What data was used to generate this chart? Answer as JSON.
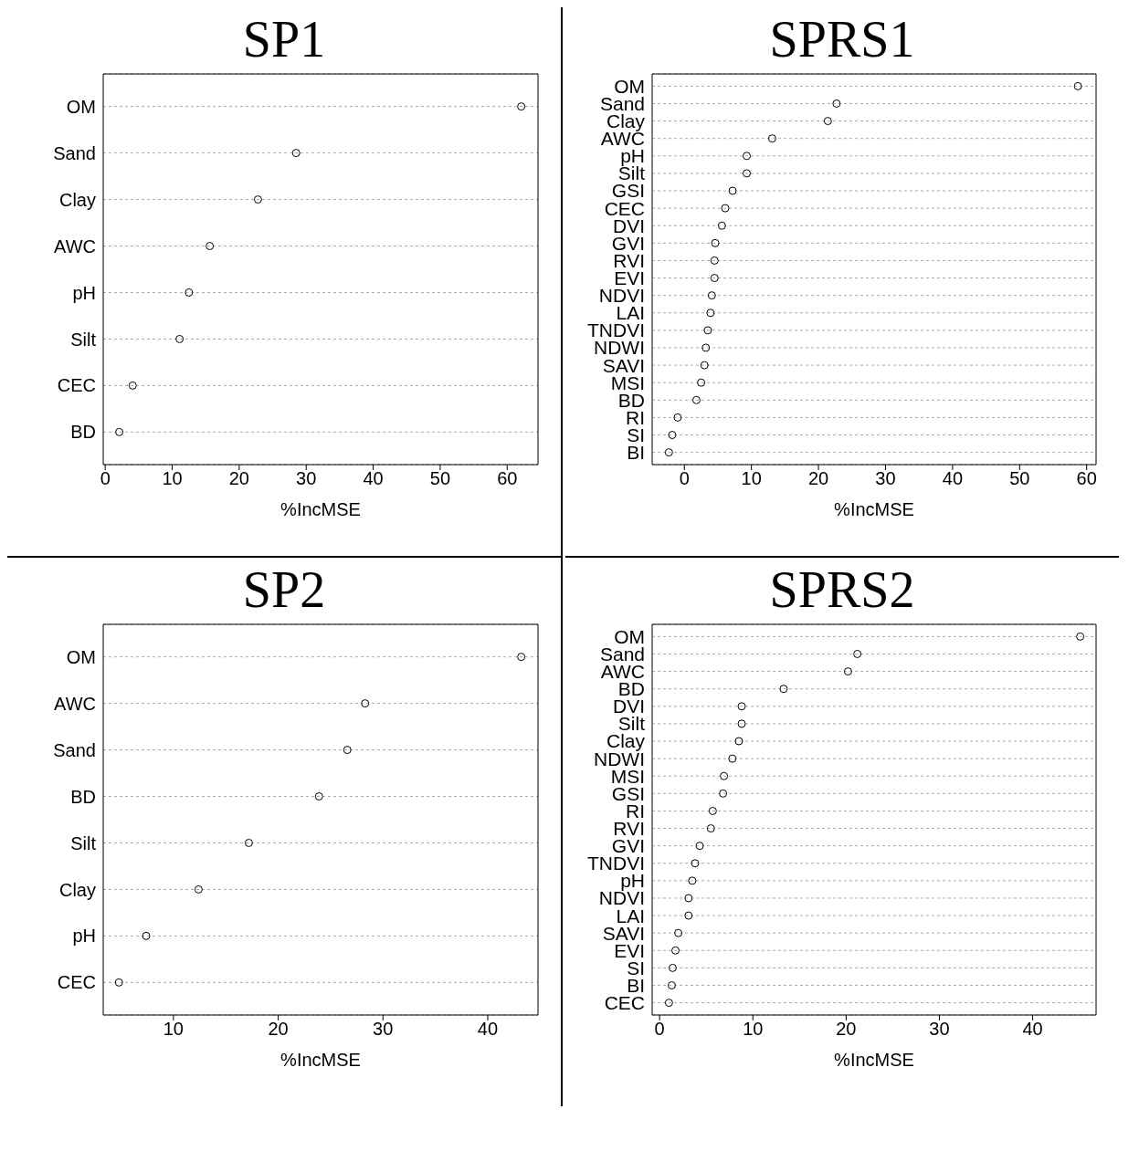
{
  "chart_data": [
    {
      "type": "scatter",
      "orientation": "horizontal",
      "title": "SP1",
      "xlabel": "%IncMSE",
      "categories": [
        "OM",
        "Sand",
        "Clay",
        "AWC",
        "pH",
        "Silt",
        "CEC",
        "BD"
      ],
      "values": [
        62.1,
        28.5,
        22.8,
        15.6,
        12.5,
        11.1,
        4.1,
        2.1
      ],
      "color": "#000000",
      "marker": "circle",
      "xlim": [
        -0.3,
        64.6
      ],
      "xticks": [
        0,
        10,
        20,
        30,
        40,
        50,
        60
      ],
      "grid": "y",
      "legend": false
    },
    {
      "type": "scatter",
      "orientation": "horizontal",
      "title": "SPRS1",
      "xlabel": "%IncMSE",
      "categories": [
        "OM",
        "Sand",
        "Clay",
        "AWC",
        "pH",
        "Silt",
        "GSI",
        "CEC",
        "DVI",
        "GVI",
        "RVI",
        "EVI",
        "NDVI",
        "LAI",
        "TNDVI",
        "NDWI",
        "SAVI",
        "MSI",
        "BD",
        "RI",
        "SI",
        "BI"
      ],
      "values": [
        58.7,
        22.7,
        21.4,
        13.1,
        9.3,
        9.3,
        7.2,
        6.1,
        5.6,
        4.6,
        4.5,
        4.5,
        4.1,
        3.9,
        3.5,
        3.2,
        3.0,
        2.5,
        1.8,
        -1.0,
        -1.8,
        -2.3
      ],
      "color": "#000000",
      "marker": "circle",
      "xlim": [
        -4.8,
        61.4
      ],
      "xticks": [
        0,
        10,
        20,
        30,
        40,
        50,
        60
      ],
      "grid": "y",
      "legend": false
    },
    {
      "type": "scatter",
      "orientation": "horizontal",
      "title": "SP2",
      "xlabel": "%IncMSE",
      "categories": [
        "OM",
        "AWC",
        "Sand",
        "BD",
        "Silt",
        "Clay",
        "pH",
        "CEC"
      ],
      "values": [
        43.2,
        28.3,
        26.6,
        23.9,
        17.2,
        12.4,
        7.4,
        4.8
      ],
      "color": "#000000",
      "marker": "circle",
      "xlim": [
        3.3,
        44.8
      ],
      "xticks": [
        10,
        20,
        30,
        40
      ],
      "grid": "y",
      "legend": false
    },
    {
      "type": "scatter",
      "orientation": "horizontal",
      "title": "SPRS2",
      "xlabel": "%IncMSE",
      "categories": [
        "OM",
        "Sand",
        "AWC",
        "BD",
        "DVI",
        "Silt",
        "Clay",
        "NDWI",
        "MSI",
        "GSI",
        "RI",
        "RVI",
        "GVI",
        "TNDVI",
        "pH",
        "NDVI",
        "LAI",
        "SAVI",
        "EVI",
        "SI",
        "BI",
        "CEC"
      ],
      "values": [
        45.1,
        21.2,
        20.2,
        13.3,
        8.8,
        8.8,
        8.5,
        7.8,
        6.9,
        6.8,
        5.7,
        5.5,
        4.3,
        3.8,
        3.5,
        3.1,
        3.1,
        2.0,
        1.7,
        1.4,
        1.3,
        1.0
      ],
      "color": "#000000",
      "marker": "circle",
      "xlim": [
        -0.8,
        46.8
      ],
      "xticks": [
        0,
        10,
        20,
        30,
        40
      ],
      "grid": "y",
      "legend": false
    }
  ]
}
